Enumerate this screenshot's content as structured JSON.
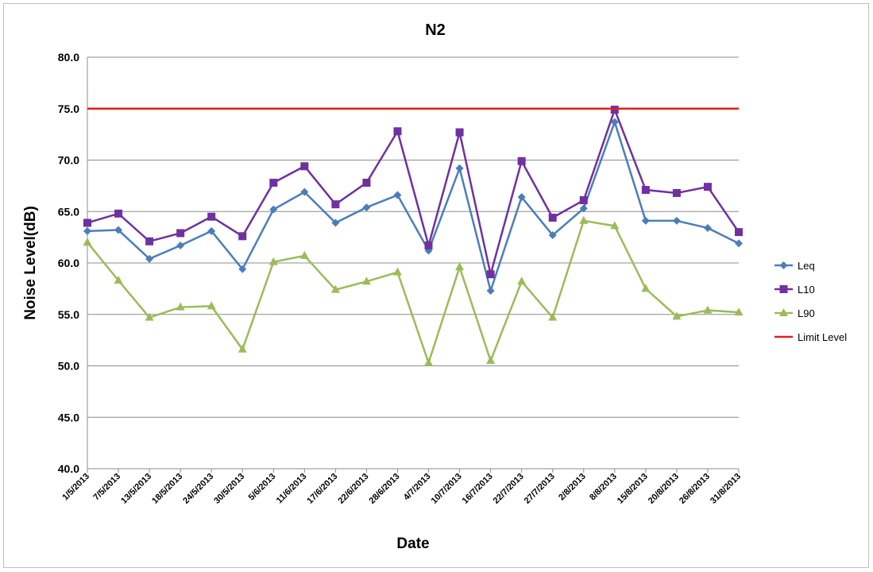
{
  "chart_data": {
    "type": "line",
    "title": "N2",
    "x_label": "Date",
    "y_label": "Noise Level(dB)",
    "categories": [
      "1/5/2013",
      "7/5/2013",
      "13/5/2013",
      "18/5/2013",
      "24/5/2013",
      "30/5/2013",
      "5/6/2013",
      "11/6/2013",
      "17/6/2013",
      "22/6/2013",
      "28/6/2013",
      "4/7/2013",
      "10/7/2013",
      "16/7/2013",
      "22/7/2013",
      "27/7/2013",
      "2/8/2013",
      "8/8/2013",
      "15/8/2013",
      "20/8/2013",
      "26/8/2013",
      "31/8/2013"
    ],
    "series": [
      {
        "name": "Leq",
        "color": "#4a7ebb",
        "marker": "diamond",
        "values": [
          63.1,
          63.2,
          60.4,
          61.7,
          63.1,
          59.4,
          65.2,
          66.9,
          63.9,
          65.4,
          66.6,
          61.2,
          69.2,
          57.3,
          66.4,
          62.7,
          65.3,
          73.7,
          64.1,
          64.1,
          63.4,
          61.9
        ]
      },
      {
        "name": "L10",
        "color": "#7030a0",
        "marker": "square",
        "values": [
          63.9,
          64.8,
          62.1,
          62.9,
          64.5,
          62.6,
          67.8,
          69.4,
          65.7,
          67.8,
          72.8,
          61.7,
          72.7,
          58.9,
          69.9,
          64.4,
          66.1,
          74.9,
          67.1,
          66.8,
          67.4,
          63.0
        ]
      },
      {
        "name": "L90",
        "color": "#9bbb59",
        "marker": "triangle",
        "values": [
          62.0,
          58.3,
          54.7,
          55.7,
          55.8,
          51.6,
          60.1,
          60.7,
          57.4,
          58.2,
          59.1,
          50.3,
          59.6,
          50.5,
          58.2,
          54.7,
          64.1,
          63.6,
          57.5,
          54.8,
          55.4,
          55.2
        ]
      },
      {
        "name": "Limit Level",
        "color": "#e0201b",
        "values": [
          75,
          75,
          75,
          75,
          75,
          75,
          75,
          75,
          75,
          75,
          75,
          75,
          75,
          75,
          75,
          75,
          75,
          75,
          75,
          75,
          75,
          75
        ]
      }
    ],
    "ylim": [
      40,
      80
    ],
    "yticks": [
      {
        "value": 40,
        "label": "40.0"
      },
      {
        "value": 45,
        "label": "45.0"
      },
      {
        "value": 50,
        "label": "50.0"
      },
      {
        "value": 55,
        "label": "55.0"
      },
      {
        "value": 60,
        "label": "60.0"
      },
      {
        "value": 65,
        "label": "65.0"
      },
      {
        "value": 70,
        "label": "70.0"
      },
      {
        "value": 75,
        "label": "75.0"
      },
      {
        "value": 80,
        "label": "80.0"
      }
    ],
    "grid": true,
    "legend": "right"
  }
}
